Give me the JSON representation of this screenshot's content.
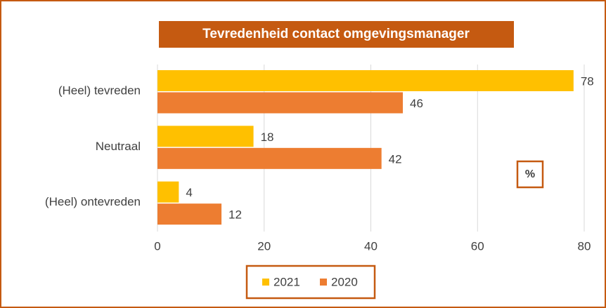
{
  "chart_data": {
    "type": "bar",
    "orientation": "horizontal",
    "title": "Tevredenheid contact omgevingsmanager",
    "categories": [
      "(Heel) tevreden",
      "Neutraal",
      "(Heel) ontevreden"
    ],
    "series": [
      {
        "name": "2021",
        "color": "#ffc000",
        "values": [
          78,
          18,
          4
        ]
      },
      {
        "name": "2020",
        "color": "#ed7d31",
        "values": [
          46,
          42,
          12
        ]
      }
    ],
    "xlim": [
      0,
      80
    ],
    "xticks": [
      0,
      20,
      40,
      60,
      80
    ],
    "grid": true,
    "annotation": "%",
    "legend": "bottom"
  }
}
